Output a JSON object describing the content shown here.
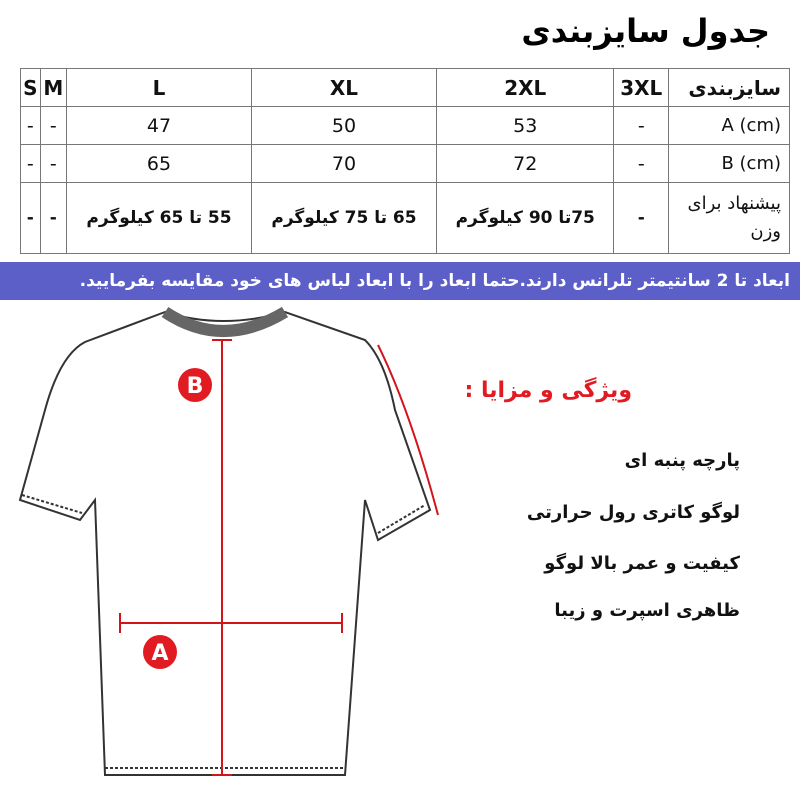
{
  "title": "جدول سایزبندی",
  "table": {
    "header": {
      "label": "سایزبندی",
      "sizes": [
        "3XL",
        "2XL",
        "XL",
        "L",
        "M",
        "S"
      ]
    },
    "rows": [
      {
        "label": "A (cm)",
        "values": [
          "-",
          "53",
          "50",
          "47",
          "-",
          "-"
        ]
      },
      {
        "label": "B (cm)",
        "values": [
          "-",
          "72",
          "70",
          "65",
          "-",
          "-"
        ]
      },
      {
        "label": "پیشنهاد برای وزن",
        "values": [
          "-",
          "75تا 90 کیلوگرم",
          "65 تا 75 کیلوگرم",
          "55 تا 65 کیلوگرم",
          "-",
          "-"
        ]
      }
    ]
  },
  "banner": "ابعاد تا 2 سانتیمتر تلرانس دارند.حتما ابعاد را با ابعاد لباس های خود مقایسه بفرمایید.",
  "features": {
    "title": "ویژگی و مزایا :",
    "items": [
      "پارچه پنبه ای",
      "لوگو کاتری رول حرارتی",
      "کیفیت و عمر بالا لوگو",
      "ظاهری اسپرت و زیبا"
    ]
  },
  "markers": {
    "a": "A",
    "b": "B"
  },
  "colors": {
    "banner": "#5b5fc7",
    "accent": "#e11b22"
  }
}
